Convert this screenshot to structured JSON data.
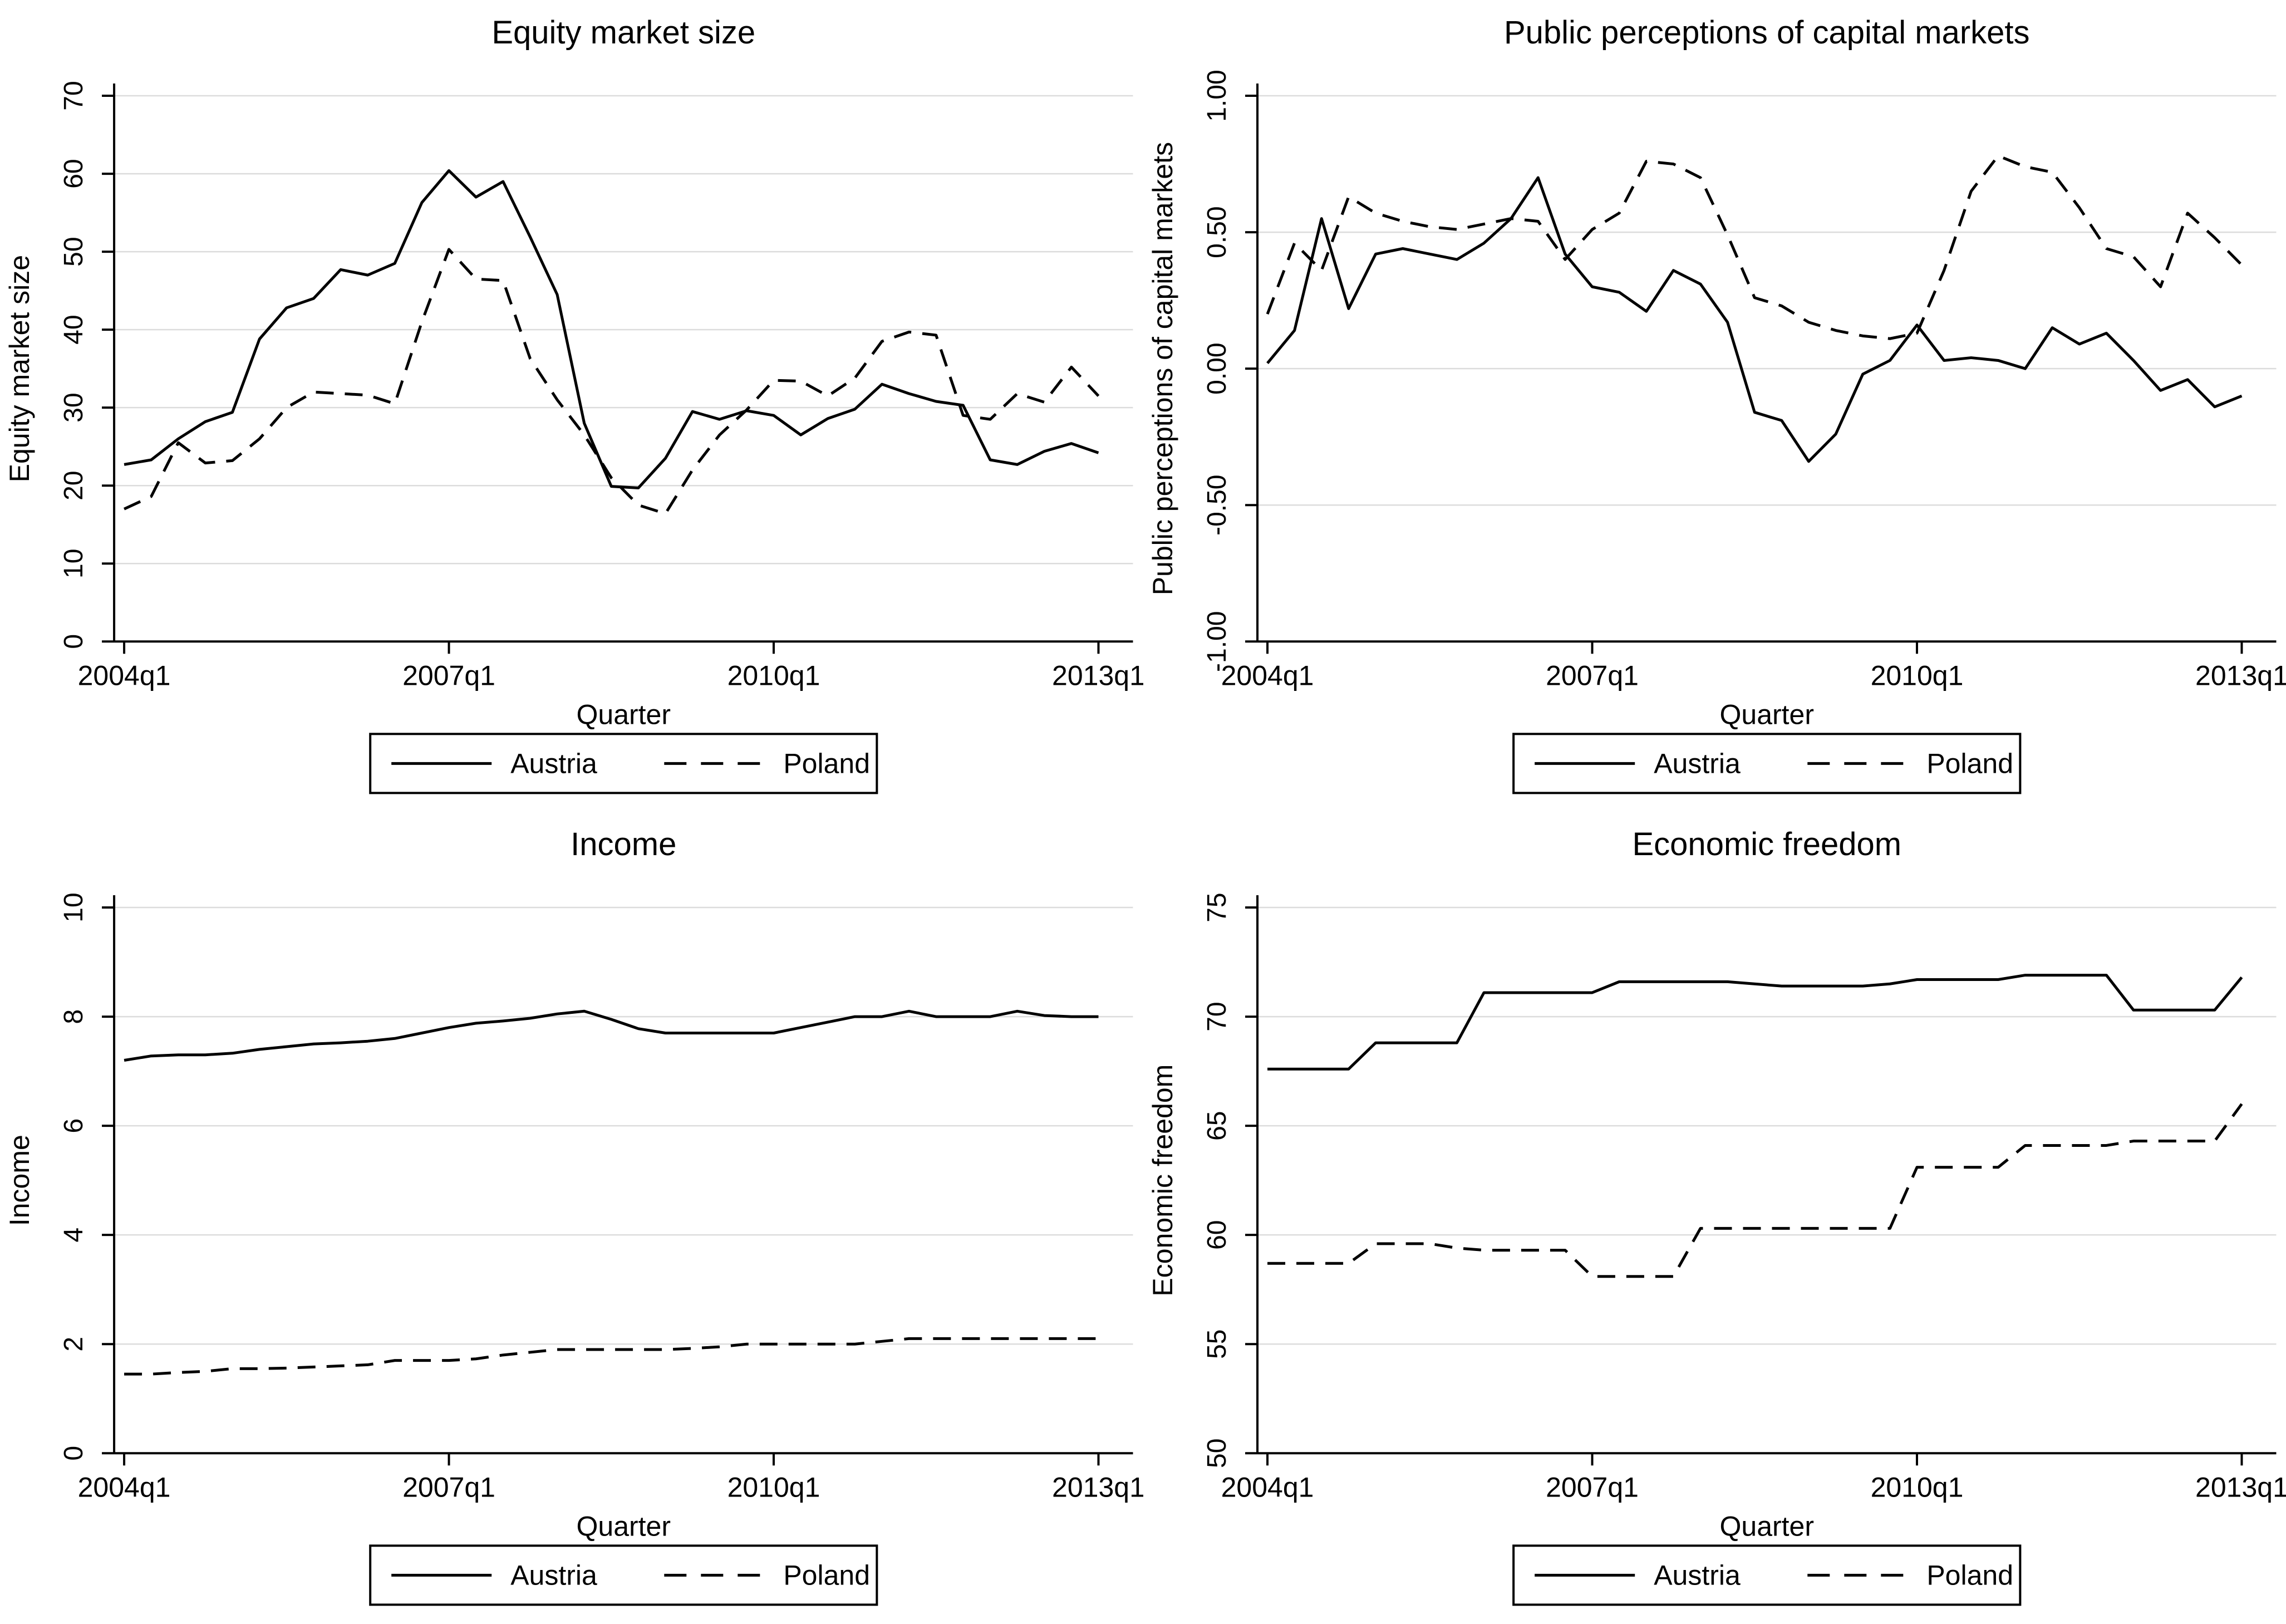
{
  "figure": {
    "background": "#ffffff",
    "line_color": "#000000",
    "grid_color": "#dcdcdc",
    "axis_color": "#000000"
  },
  "legend": {
    "austria_label": "Austria",
    "poland_label": "Poland"
  },
  "x_axis": {
    "label": "Quarter",
    "tick_labels": [
      "2004q1",
      "2007q1",
      "2010q1",
      "2013q1"
    ],
    "tick_positions": [
      0,
      12,
      24,
      36
    ],
    "n_quarters": 37
  },
  "chart_data": [
    {
      "type": "line",
      "title": "Equity market size",
      "ylabel": "Equity market size",
      "xlabel": "Quarter",
      "ylim": [
        0,
        70
      ],
      "yticks": [
        0,
        10,
        20,
        30,
        40,
        50,
        60,
        70
      ],
      "ytick_labels": [
        "0",
        "10",
        "20",
        "30",
        "40",
        "50",
        "60",
        "70"
      ],
      "x_tick_labels": [
        "2004q1",
        "2007q1",
        "2010q1",
        "2013q1"
      ],
      "x_tick_positions": [
        0,
        12,
        24,
        36
      ],
      "grid": true,
      "legend_position": "bottom",
      "series": [
        {
          "name": "Austria",
          "style": "solid",
          "values": [
            22.7,
            23.3,
            26.0,
            28.2,
            29.4,
            38.8,
            42.8,
            44.0,
            47.7,
            47.0,
            48.5,
            56.3,
            60.4,
            57.0,
            59.0,
            51.9,
            44.5,
            28.0,
            19.9,
            19.7,
            23.5,
            29.5,
            28.5,
            29.6,
            29.0,
            26.5,
            28.6,
            29.8,
            33.0,
            31.8,
            30.8,
            30.3,
            23.3,
            22.7,
            24.4,
            25.4,
            24.2
          ]
        },
        {
          "name": "Poland",
          "style": "dashed",
          "values": [
            17.0,
            18.6,
            25.5,
            22.9,
            23.2,
            26.0,
            30.0,
            32.0,
            31.8,
            31.6,
            30.5,
            41.0,
            50.3,
            46.5,
            46.3,
            36.3,
            31.0,
            26.5,
            21.0,
            17.5,
            16.4,
            22.0,
            26.5,
            29.7,
            33.5,
            33.4,
            31.5,
            33.8,
            38.5,
            39.7,
            39.3,
            29.0,
            28.5,
            31.8,
            30.7,
            35.2,
            31.5
          ]
        }
      ]
    },
    {
      "type": "line",
      "title": "Public perceptions of capital markets",
      "ylabel": "Public perceptions of capital markets",
      "xlabel": "Quarter",
      "ylim": [
        -1,
        1
      ],
      "yticks": [
        -1,
        -0.5,
        0,
        0.5,
        1
      ],
      "ytick_labels": [
        "-1.00",
        "-0.50",
        "0.00",
        "0.50",
        "1.00"
      ],
      "x_tick_labels": [
        "2004q1",
        "2007q1",
        "2010q1",
        "2013q1"
      ],
      "x_tick_positions": [
        0,
        12,
        24,
        36
      ],
      "grid": true,
      "legend_position": "bottom",
      "series": [
        {
          "name": "Austria",
          "style": "solid",
          "values": [
            0.02,
            0.14,
            0.55,
            0.22,
            0.42,
            0.44,
            0.42,
            0.4,
            0.46,
            0.55,
            0.7,
            0.42,
            0.3,
            0.28,
            0.21,
            0.36,
            0.31,
            0.17,
            -0.16,
            -0.19,
            -0.34,
            -0.24,
            -0.02,
            0.03,
            0.16,
            0.03,
            0.04,
            0.03,
            0.0,
            0.15,
            0.09,
            0.13,
            0.03,
            -0.08,
            -0.04,
            -0.14,
            -0.1
          ]
        },
        {
          "name": "Poland",
          "style": "dashed",
          "values": [
            0.2,
            0.46,
            0.36,
            0.63,
            0.57,
            0.54,
            0.52,
            0.51,
            0.53,
            0.55,
            0.54,
            0.4,
            0.51,
            0.57,
            0.76,
            0.75,
            0.7,
            0.49,
            0.26,
            0.23,
            0.17,
            0.14,
            0.12,
            0.11,
            0.13,
            0.36,
            0.65,
            0.78,
            0.74,
            0.72,
            0.59,
            0.44,
            0.41,
            0.3,
            0.57,
            0.48,
            0.38
          ]
        }
      ]
    },
    {
      "type": "line",
      "title": "Income",
      "ylabel": "Income",
      "xlabel": "Quarter",
      "ylim": [
        0,
        10
      ],
      "yticks": [
        0,
        2,
        4,
        6,
        8,
        10
      ],
      "ytick_labels": [
        "0",
        "2",
        "4",
        "6",
        "8",
        "10"
      ],
      "x_tick_labels": [
        "2004q1",
        "2007q1",
        "2010q1",
        "2013q1"
      ],
      "x_tick_positions": [
        0,
        12,
        24,
        36
      ],
      "grid": true,
      "legend_position": "bottom",
      "series": [
        {
          "name": "Austria",
          "style": "solid",
          "values": [
            7.2,
            7.28,
            7.3,
            7.3,
            7.33,
            7.4,
            7.45,
            7.5,
            7.52,
            7.55,
            7.6,
            7.7,
            7.8,
            7.88,
            7.92,
            7.97,
            8.05,
            8.1,
            7.95,
            7.78,
            7.7,
            7.7,
            7.7,
            7.7,
            7.7,
            7.8,
            7.9,
            8.0,
            8.0,
            8.1,
            8.0,
            8.0,
            8.0,
            8.1,
            8.02,
            8.0,
            8.0
          ]
        },
        {
          "name": "Poland",
          "style": "dashed",
          "values": [
            1.45,
            1.45,
            1.48,
            1.5,
            1.55,
            1.55,
            1.56,
            1.58,
            1.6,
            1.62,
            1.7,
            1.7,
            1.7,
            1.73,
            1.8,
            1.85,
            1.9,
            1.9,
            1.9,
            1.9,
            1.9,
            1.92,
            1.95,
            2.0,
            2.0,
            2.0,
            2.0,
            2.0,
            2.05,
            2.1,
            2.1,
            2.1,
            2.1,
            2.1,
            2.1,
            2.1,
            2.1
          ]
        }
      ]
    },
    {
      "type": "line",
      "title": "Economic freedom",
      "ylabel": "Economic freedom",
      "xlabel": "Quarter",
      "ylim": [
        50,
        75
      ],
      "yticks": [
        50,
        55,
        60,
        65,
        70,
        75
      ],
      "ytick_labels": [
        "50",
        "55",
        "60",
        "65",
        "70",
        "75"
      ],
      "x_tick_labels": [
        "2004q1",
        "2007q1",
        "2010q1",
        "2013q1"
      ],
      "x_tick_positions": [
        0,
        12,
        24,
        36
      ],
      "grid": true,
      "legend_position": "bottom",
      "series": [
        {
          "name": "Austria",
          "style": "solid",
          "values": [
            67.6,
            67.6,
            67.6,
            67.6,
            68.8,
            68.8,
            68.8,
            68.8,
            71.1,
            71.1,
            71.1,
            71.1,
            71.1,
            71.6,
            71.6,
            71.6,
            71.6,
            71.6,
            71.5,
            71.4,
            71.4,
            71.4,
            71.4,
            71.5,
            71.7,
            71.7,
            71.7,
            71.7,
            71.9,
            71.9,
            71.9,
            71.9,
            70.3,
            70.3,
            70.3,
            70.3,
            71.8
          ]
        },
        {
          "name": "Poland",
          "style": "dashed",
          "values": [
            58.7,
            58.7,
            58.7,
            58.7,
            59.6,
            59.6,
            59.6,
            59.4,
            59.3,
            59.3,
            59.3,
            59.3,
            58.1,
            58.1,
            58.1,
            58.1,
            60.3,
            60.3,
            60.3,
            60.3,
            60.3,
            60.3,
            60.3,
            60.3,
            63.1,
            63.1,
            63.1,
            63.1,
            64.1,
            64.1,
            64.1,
            64.1,
            64.3,
            64.3,
            64.3,
            64.3,
            66.0
          ]
        }
      ]
    }
  ]
}
